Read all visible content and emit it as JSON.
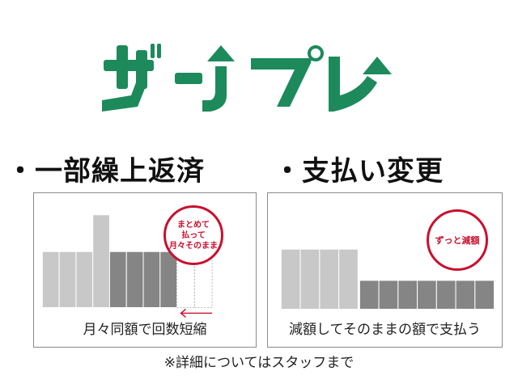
{
  "logo": {
    "text": "ザ・ゾプレ",
    "color": "#1d8a5c"
  },
  "headings": {
    "left": "・一部繰上返済",
    "right": "・支払い変更"
  },
  "panels": {
    "left": {
      "caption": "月々同額で回数短縮",
      "stamp_lines": [
        "まとめて",
        "払って",
        "月々そのまま"
      ]
    },
    "right": {
      "caption": "減額してそのままの額で支払う",
      "stamp_lines": [
        "ずっと減額"
      ]
    }
  },
  "note": "※詳細についてはスタッフまで",
  "colors": {
    "light_bar": "#c8c8c8",
    "dark_bar": "#858585",
    "stamp": "#c8102e",
    "arrow": "#c8102e"
  }
}
